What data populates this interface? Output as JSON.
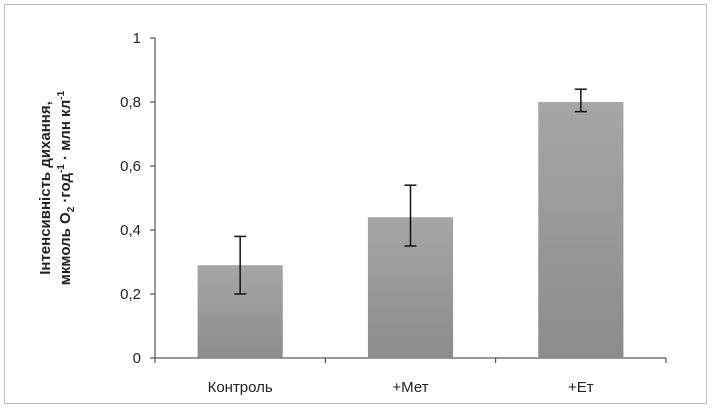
{
  "chart_data": {
    "type": "bar",
    "categories": [
      "Контроль",
      "+Мет",
      "+Ет"
    ],
    "values": [
      0.29,
      0.44,
      0.8
    ],
    "error_bars": [
      {
        "lower": 0.2,
        "upper": 0.38
      },
      {
        "lower": 0.35,
        "upper": 0.54
      },
      {
        "lower": 0.77,
        "upper": 0.84
      }
    ],
    "ylabel_line1": "Інтенсивність дихання,",
    "ylabel_line2": {
      "prefix": "мкмоль O",
      "sub1": "2",
      "mid1": " ·год",
      "sup1": "-1",
      "mid2": " · млн кл",
      "sup2": "-1"
    },
    "ylim": [
      0,
      1
    ],
    "yticks": [
      {
        "value": 0,
        "label": "0"
      },
      {
        "value": 0.2,
        "label": "0,2"
      },
      {
        "value": 0.4,
        "label": "0,4"
      },
      {
        "value": 0.6,
        "label": "0,6"
      },
      {
        "value": 0.8,
        "label": "0,8"
      },
      {
        "value": 1,
        "label": "1"
      }
    ],
    "grid": false,
    "legend": "none",
    "colors": {
      "bar_top": "#a6a6a6",
      "bar_bottom": "#8c8c8c",
      "axis": "#333333",
      "error_bar": "#111111"
    }
  }
}
